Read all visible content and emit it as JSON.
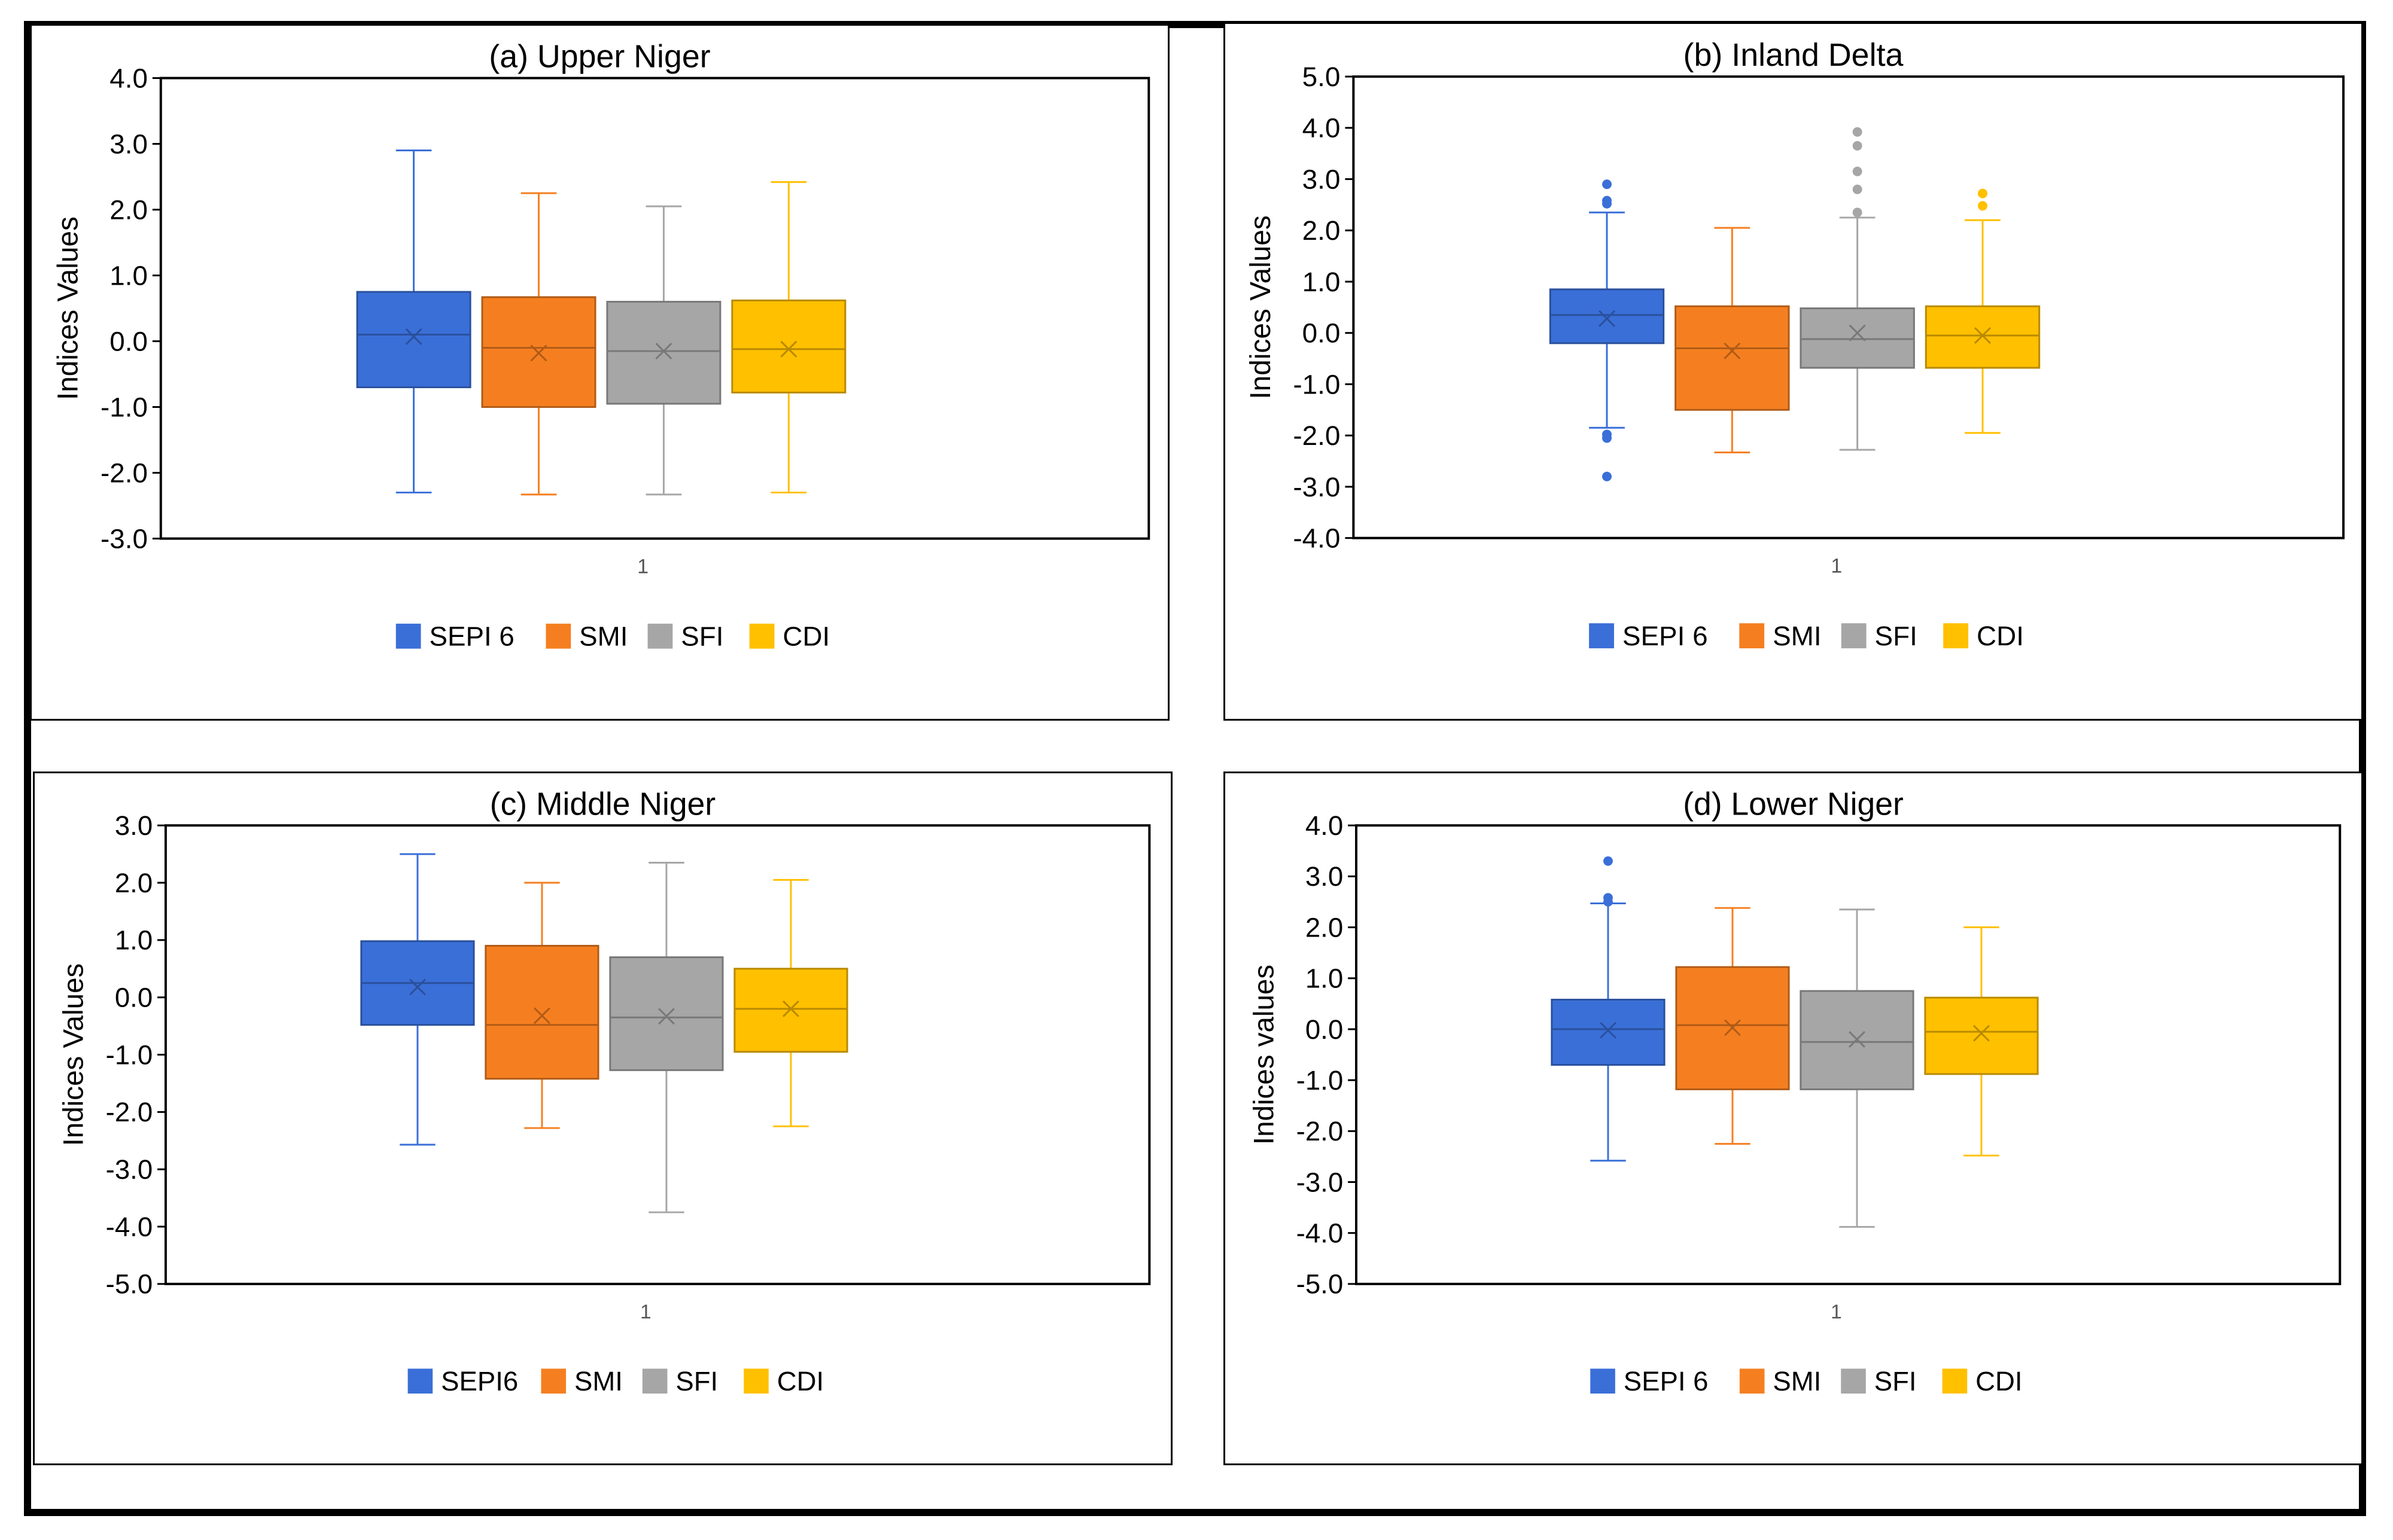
{
  "colors": {
    "SEPI": "#3a6fd8",
    "SMI": "#f57f20",
    "SFI": "#a6a6a6",
    "CDI": "#ffc000"
  },
  "chart_data": [
    {
      "type": "box",
      "title": "(a) Upper Niger",
      "title_color": "#666666",
      "xlabel": "1",
      "ylabel": "Indices Values",
      "ylim": [
        -3.0,
        4.0
      ],
      "ytick_step": 1.0,
      "yticks": [
        "4.0",
        "3.0",
        "2.0",
        "1.0",
        "0.0",
        "-1.0",
        "-2.0",
        "-3.0"
      ],
      "legend": [
        "SEPI 6",
        "SMI",
        "SFI",
        "CDI"
      ],
      "series": [
        {
          "name": "SEPI 6",
          "color_key": "SEPI",
          "min": -2.3,
          "q1": -0.7,
          "median": 0.1,
          "q3": 0.75,
          "max": 2.9,
          "mean": 0.07,
          "outliers": []
        },
        {
          "name": "SMI",
          "color_key": "SMI",
          "min": -2.33,
          "q1": -1.0,
          "median": -0.1,
          "q3": 0.67,
          "max": 2.25,
          "mean": -0.18,
          "outliers": []
        },
        {
          "name": "SFI",
          "color_key": "SFI",
          "min": -2.33,
          "q1": -0.95,
          "median": -0.15,
          "q3": 0.6,
          "max": 2.05,
          "mean": -0.15,
          "outliers": []
        },
        {
          "name": "CDI",
          "color_key": "CDI",
          "min": -2.3,
          "q1": -0.78,
          "median": -0.12,
          "q3": 0.62,
          "max": 2.42,
          "mean": -0.12,
          "outliers": []
        }
      ]
    },
    {
      "type": "box",
      "title": "(b) Inland Delta",
      "title_color": "#000000",
      "xlabel": "1",
      "ylabel": "Indices Values",
      "ylim": [
        -4.0,
        5.0
      ],
      "ytick_step": 1.0,
      "yticks": [
        "5.0",
        "4.0",
        "3.0",
        "2.0",
        "1.0",
        "0.0",
        "-1.0",
        "-2.0",
        "-3.0",
        "-4.0"
      ],
      "legend": [
        "SEPI 6",
        "SMI",
        "SFI",
        "CDI"
      ],
      "series": [
        {
          "name": "SEPI 6",
          "color_key": "SEPI",
          "min": -1.85,
          "q1": -0.2,
          "median": 0.35,
          "q3": 0.85,
          "max": 2.35,
          "mean": 0.28,
          "outliers": [
            2.9,
            2.58,
            2.52,
            -1.98,
            -2.05,
            -2.8
          ]
        },
        {
          "name": "SMI",
          "color_key": "SMI",
          "min": -2.33,
          "q1": -1.5,
          "median": -0.3,
          "q3": 0.52,
          "max": 2.05,
          "mean": -0.35,
          "outliers": []
        },
        {
          "name": "SFI",
          "color_key": "SFI",
          "min": -2.28,
          "q1": -0.68,
          "median": -0.12,
          "q3": 0.48,
          "max": 2.25,
          "mean": 0.0,
          "outliers": [
            3.92,
            3.65,
            3.15,
            2.8,
            2.35
          ]
        },
        {
          "name": "CDI",
          "color_key": "CDI",
          "min": -1.95,
          "q1": -0.68,
          "median": -0.05,
          "q3": 0.52,
          "max": 2.2,
          "mean": -0.05,
          "outliers": [
            2.72,
            2.48
          ]
        }
      ]
    },
    {
      "type": "box",
      "title": "(c) Middle Niger",
      "title_color": "#000000",
      "xlabel": "1",
      "ylabel": "Indices Values",
      "ylim": [
        -5.0,
        3.0
      ],
      "ytick_step": 1.0,
      "yticks": [
        "3.0",
        "2.0",
        "1.0",
        "0.0",
        "-1.0",
        "-2.0",
        "-3.0",
        "-4.0",
        "-5.0"
      ],
      "legend": [
        "SEPI6",
        "SMI",
        "SFI",
        "CDI"
      ],
      "series": [
        {
          "name": "SEPI6",
          "color_key": "SEPI",
          "min": -2.57,
          "q1": -0.48,
          "median": 0.25,
          "q3": 0.98,
          "max": 2.5,
          "mean": 0.18,
          "outliers": []
        },
        {
          "name": "SMI",
          "color_key": "SMI",
          "min": -2.28,
          "q1": -1.42,
          "median": -0.48,
          "q3": 0.9,
          "max": 2.0,
          "mean": -0.32,
          "outliers": []
        },
        {
          "name": "SFI",
          "color_key": "SFI",
          "min": -3.75,
          "q1": -1.27,
          "median": -0.35,
          "q3": 0.7,
          "max": 2.35,
          "mean": -0.33,
          "outliers": []
        },
        {
          "name": "CDI",
          "color_key": "CDI",
          "min": -2.25,
          "q1": -0.95,
          "median": -0.2,
          "q3": 0.5,
          "max": 2.05,
          "mean": -0.2,
          "outliers": []
        }
      ]
    },
    {
      "type": "box",
      "title": "(d) Lower Niger",
      "title_color": "#000000",
      "xlabel": "1",
      "ylabel": "Indices values",
      "ylim": [
        -5.0,
        4.0
      ],
      "ytick_step": 1.0,
      "yticks": [
        "4.0",
        "3.0",
        "2.0",
        "1.0",
        "0.0",
        "-1.0",
        "-2.0",
        "-3.0",
        "-4.0",
        "-5.0"
      ],
      "legend": [
        "SEPI 6",
        "SMI",
        "SFI",
        "CDI"
      ],
      "series": [
        {
          "name": "SEPI 6",
          "color_key": "SEPI",
          "min": -2.58,
          "q1": -0.7,
          "median": 0.0,
          "q3": 0.58,
          "max": 2.47,
          "mean": -0.02,
          "outliers": [
            3.3,
            2.58,
            2.5
          ]
        },
        {
          "name": "SMI",
          "color_key": "SMI",
          "min": -2.25,
          "q1": -1.18,
          "median": 0.08,
          "q3": 1.22,
          "max": 2.38,
          "mean": 0.03,
          "outliers": []
        },
        {
          "name": "SFI",
          "color_key": "SFI",
          "min": -3.88,
          "q1": -1.18,
          "median": -0.25,
          "q3": 0.75,
          "max": 2.35,
          "mean": -0.2,
          "outliers": []
        },
        {
          "name": "CDI",
          "color_key": "CDI",
          "min": -2.48,
          "q1": -0.88,
          "median": -0.05,
          "q3": 0.62,
          "max": 2.0,
          "mean": -0.08,
          "outliers": []
        }
      ]
    }
  ]
}
